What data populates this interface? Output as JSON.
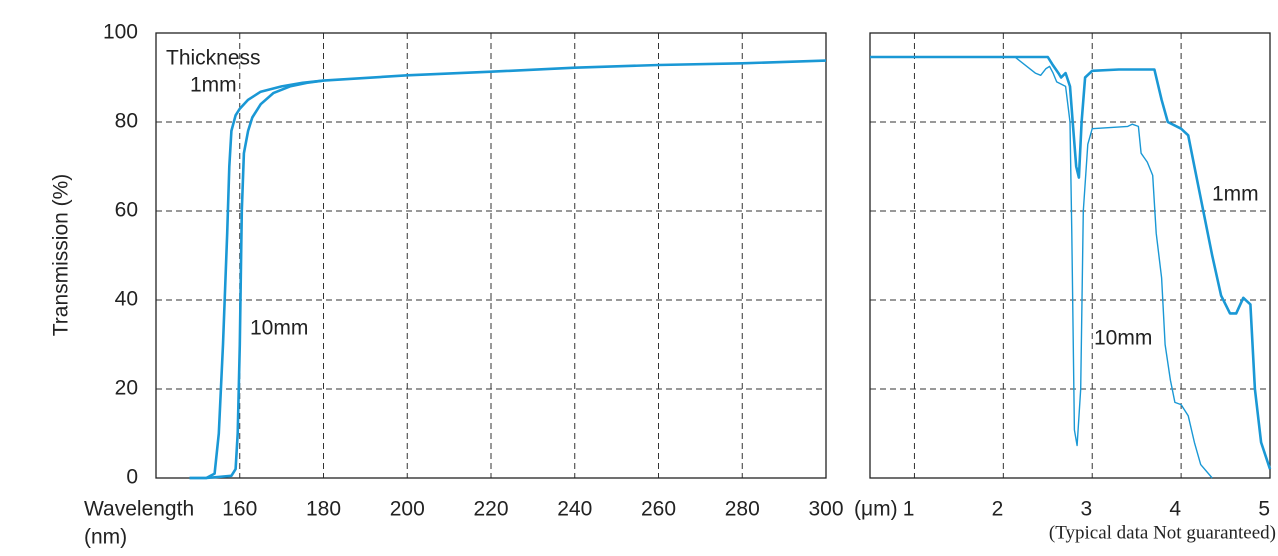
{
  "chart_data": [
    {
      "type": "line",
      "y_label": "Transmission (%)",
      "x_label": [
        "Wavelength",
        "(nm)"
      ],
      "annotation": "Thickness",
      "xlim": [
        140,
        300
      ],
      "xticks": [
        160,
        180,
        200,
        220,
        240,
        260,
        280,
        300
      ],
      "ylim": [
        0,
        100
      ],
      "yticks": [
        0,
        20,
        40,
        60,
        80,
        100
      ],
      "grid": true,
      "series": [
        {
          "name": "1mm",
          "color": "#1a98d5",
          "width": 2.6,
          "x": [
            148,
            152,
            154,
            155,
            156,
            157,
            157.5,
            158,
            159,
            160,
            162,
            165,
            170,
            175,
            180,
            200,
            220,
            240,
            260,
            280,
            300
          ],
          "values": [
            0,
            0,
            1,
            10,
            30,
            55,
            70,
            78,
            81.5,
            83,
            85,
            86.8,
            88,
            88.8,
            89.3,
            90.5,
            91.3,
            92.2,
            92.8,
            93.2,
            93.8
          ]
        },
        {
          "name": "10mm",
          "color": "#1a98d5",
          "width": 2.6,
          "x": [
            148,
            152,
            158,
            159,
            159.5,
            160,
            160.5,
            161,
            162,
            163,
            165,
            168,
            172,
            176,
            180
          ],
          "values": [
            0,
            0,
            0.5,
            2,
            10,
            30,
            60,
            73,
            78,
            81,
            84,
            86.5,
            88,
            88.8,
            89.3
          ]
        }
      ]
    },
    {
      "type": "line",
      "x_label": "(μm)",
      "footnote": "(Typical data Not guaranteed)",
      "xlim": [
        0.5,
        5
      ],
      "xticks": [
        1,
        2,
        3,
        4,
        5
      ],
      "ylim": [
        0,
        100
      ],
      "sharey": true,
      "grid": true,
      "series": [
        {
          "name": "1mm",
          "color": "#1a98d5",
          "width": 2.6,
          "x": [
            0.5,
            2.5,
            2.55,
            2.62,
            2.65,
            2.7,
            2.75,
            2.78,
            2.82,
            2.85,
            2.88,
            2.92,
            3.0,
            3.3,
            3.7,
            3.78,
            3.85,
            4.0,
            4.08,
            4.15,
            4.25,
            4.35,
            4.45,
            4.55,
            4.62,
            4.7,
            4.78,
            4.83,
            4.9,
            5.0
          ],
          "values": [
            94.6,
            94.6,
            93,
            91,
            90,
            91,
            88,
            80,
            70,
            67.5,
            80,
            90,
            91.5,
            91.8,
            91.8,
            85,
            80,
            78.5,
            77,
            70,
            60,
            50,
            41,
            37,
            37,
            40.5,
            39,
            20,
            8,
            2
          ]
        },
        {
          "name": "10mm",
          "color": "#1a98d5",
          "width": 1.4,
          "x": [
            0.5,
            2.13,
            2.36,
            2.42,
            2.48,
            2.52,
            2.56,
            2.6,
            2.7,
            2.75,
            2.77,
            2.8,
            2.83,
            2.87,
            2.9,
            2.95,
            3.0,
            3.4,
            3.45,
            3.52,
            3.55,
            3.62,
            3.68,
            3.72,
            3.78,
            3.82,
            3.88,
            3.93,
            4.0,
            4.08,
            4.15,
            4.22,
            4.35
          ],
          "values": [
            94.6,
            94.6,
            91,
            90.5,
            92,
            92.5,
            91,
            89,
            88,
            80,
            55,
            10.8,
            7.3,
            20,
            60,
            75,
            78.5,
            79,
            79.5,
            79,
            73,
            71,
            68,
            55,
            45,
            30,
            22,
            17,
            16.5,
            14,
            8,
            3,
            0
          ]
        }
      ]
    }
  ]
}
